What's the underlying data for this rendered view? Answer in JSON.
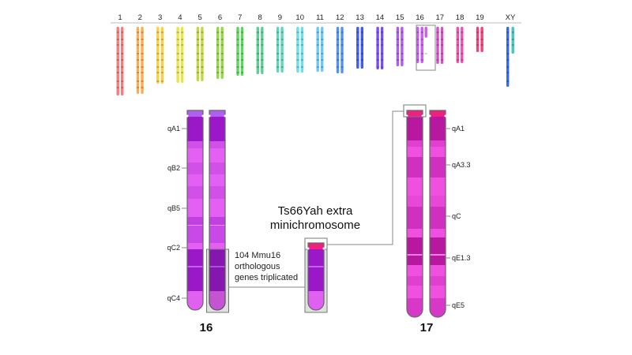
{
  "karyotype": {
    "chromosomes": [
      {
        "label": "1",
        "color": "#f86464",
        "rel_length": 87
      },
      {
        "label": "2",
        "color": "#f9a035",
        "rel_length": 85
      },
      {
        "label": "3",
        "color": "#f8c820",
        "rel_length": 72
      },
      {
        "label": "4",
        "color": "#e8e020",
        "rel_length": 71
      },
      {
        "label": "5",
        "color": "#b8d020",
        "rel_length": 69
      },
      {
        "label": "6",
        "color": "#80d420",
        "rel_length": 66
      },
      {
        "label": "7",
        "color": "#40d040",
        "rel_length": 62
      },
      {
        "label": "8",
        "color": "#40c880",
        "rel_length": 60
      },
      {
        "label": "9",
        "color": "#40d0b0",
        "rel_length": 58
      },
      {
        "label": "10",
        "color": "#50d8e8",
        "rel_length": 58
      },
      {
        "label": "11",
        "color": "#50c0f8",
        "rel_length": 57
      },
      {
        "label": "12",
        "color": "#3080f8",
        "rel_length": 59
      },
      {
        "label": "13",
        "color": "#2040f0",
        "rel_length": 53
      },
      {
        "label": "14",
        "color": "#6030f0",
        "rel_length": 54
      },
      {
        "label": "15",
        "color": "#a040f0",
        "rel_length": 50
      },
      {
        "label": "16",
        "color": "#c040f0",
        "rel_length": 46
      },
      {
        "label": "17",
        "color": "#d030c0",
        "rel_length": 47
      },
      {
        "label": "18",
        "color": "#f030a0",
        "rel_length": 46
      },
      {
        "label": "19",
        "color": "#f02060",
        "rel_length": 32
      },
      {
        "label": "XY",
        "color": "#1050f0",
        "color2": "#20c0b0",
        "rel_length": 76,
        "rel_length2": 34
      }
    ],
    "highlighted": "16"
  },
  "chr16": {
    "label": "16",
    "bands": [
      "qA1",
      "qB2",
      "qB5",
      "qC2",
      "qC4"
    ]
  },
  "chr17": {
    "label": "17",
    "bands": [
      "qA1",
      "qA3.3",
      "qC",
      "qE1.3",
      "qE5"
    ]
  },
  "annotation": "104 Mmu16 orthologous genes triplicated",
  "annotation_lines": [
    "104 Mmu16",
    "orthologous",
    "genes triplicated"
  ],
  "minichromosome": {
    "title_lines": [
      "Ts66Yah extra",
      "minichromosome"
    ]
  }
}
